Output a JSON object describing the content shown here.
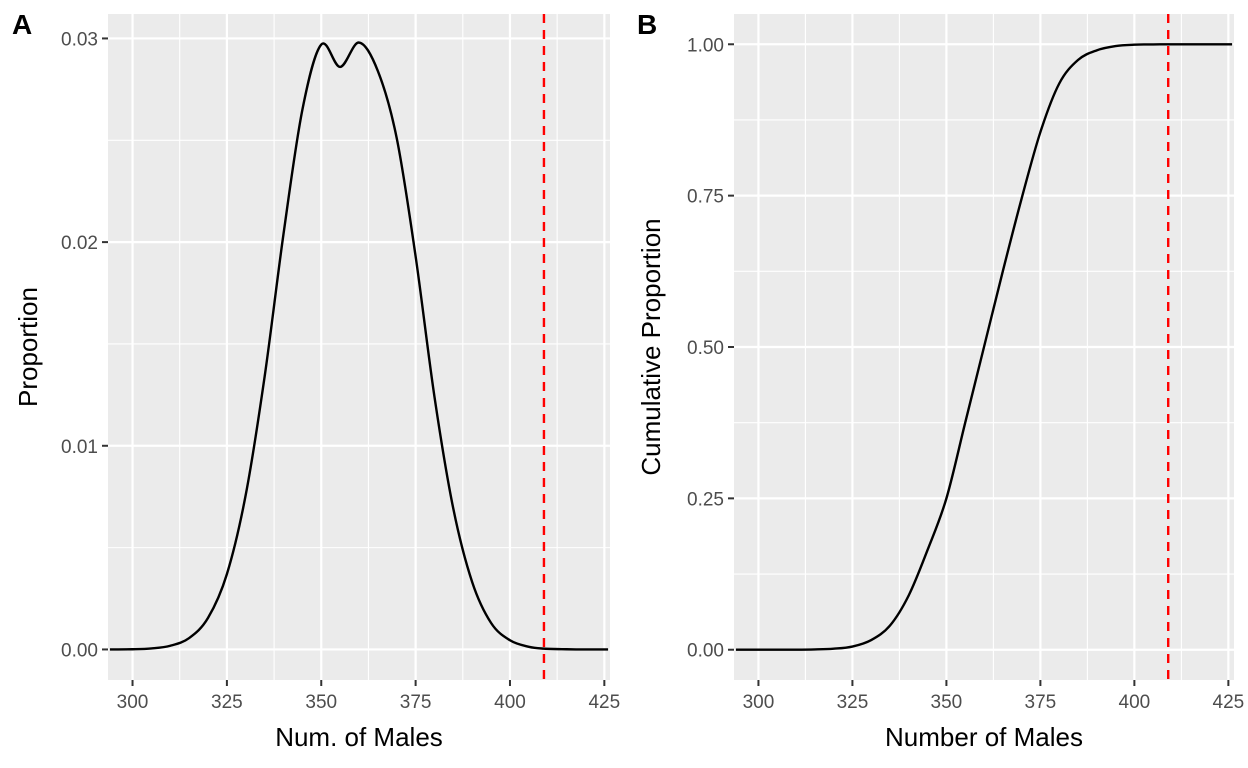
{
  "colors": {
    "panel_background": "#ebebeb",
    "grid": "#ffffff",
    "curve": "#000000",
    "reference_line": "#ff0000",
    "tick_text": "#4d4d4d"
  },
  "chart_data": [
    {
      "tag": "A",
      "type": "line",
      "xlabel": "Num. of Males",
      "ylabel": "Proportion",
      "xlim": [
        293.5,
        426.5
      ],
      "ylim": [
        -0.0015,
        0.0312
      ],
      "xticks": [
        300,
        325,
        350,
        375,
        400,
        425
      ],
      "xtick_labels": [
        "300",
        "325",
        "350",
        "375",
        "400",
        "425"
      ],
      "yticks": [
        0,
        0.01,
        0.02,
        0.03
      ],
      "ytick_labels": [
        "0.00",
        "0.01",
        "0.02",
        "0.03"
      ],
      "grid": true,
      "reference_x": 409,
      "series": [
        {
          "x": [
            294,
            300,
            305,
            310,
            315,
            320,
            325,
            330,
            335,
            340,
            345,
            350,
            355,
            360,
            365,
            370,
            375,
            380,
            385,
            390,
            395,
            400,
            405,
            409,
            415,
            420,
            426
          ],
          "y": [
            0.0,
            1e-05,
            5e-05,
            0.00018,
            0.00056,
            0.00155,
            0.0037,
            0.0076,
            0.0134,
            0.0204,
            0.0265,
            0.0297,
            0.0286,
            0.0298,
            0.0284,
            0.0251,
            0.0193,
            0.0124,
            0.0069,
            0.0033,
            0.0013,
            0.00045,
            0.00013,
            4e-05,
            1e-05,
            0.0,
            0.0
          ]
        }
      ]
    },
    {
      "tag": "B",
      "type": "line",
      "xlabel": "Number of Males",
      "ylabel": "Cumulative Proportion",
      "xlim": [
        293.5,
        426.5
      ],
      "ylim": [
        -0.05,
        1.05
      ],
      "xticks": [
        300,
        325,
        350,
        375,
        400,
        425
      ],
      "xtick_labels": [
        "300",
        "325",
        "350",
        "375",
        "400",
        "425"
      ],
      "yticks": [
        0,
        0.25,
        0.5,
        0.75,
        1.0
      ],
      "ytick_labels": [
        "0.00",
        "0.25",
        "0.50",
        "0.75",
        "1.00"
      ],
      "grid": true,
      "reference_x": 409,
      "series": [
        {
          "x": [
            294,
            300,
            310,
            315,
            320,
            325,
            330,
            335,
            340,
            345,
            350,
            355,
            360,
            365,
            370,
            375,
            380,
            385,
            390,
            395,
            400,
            405,
            409,
            415,
            420,
            426
          ],
          "y": [
            0.0,
            0.0,
            0.0001,
            0.0005,
            0.0017,
            0.0053,
            0.016,
            0.04,
            0.09,
            0.165,
            0.25,
            0.375,
            0.5,
            0.625,
            0.745,
            0.855,
            0.935,
            0.974,
            0.99,
            0.997,
            0.9993,
            0.9998,
            1.0,
            1.0,
            1.0,
            1.0
          ]
        }
      ]
    }
  ]
}
